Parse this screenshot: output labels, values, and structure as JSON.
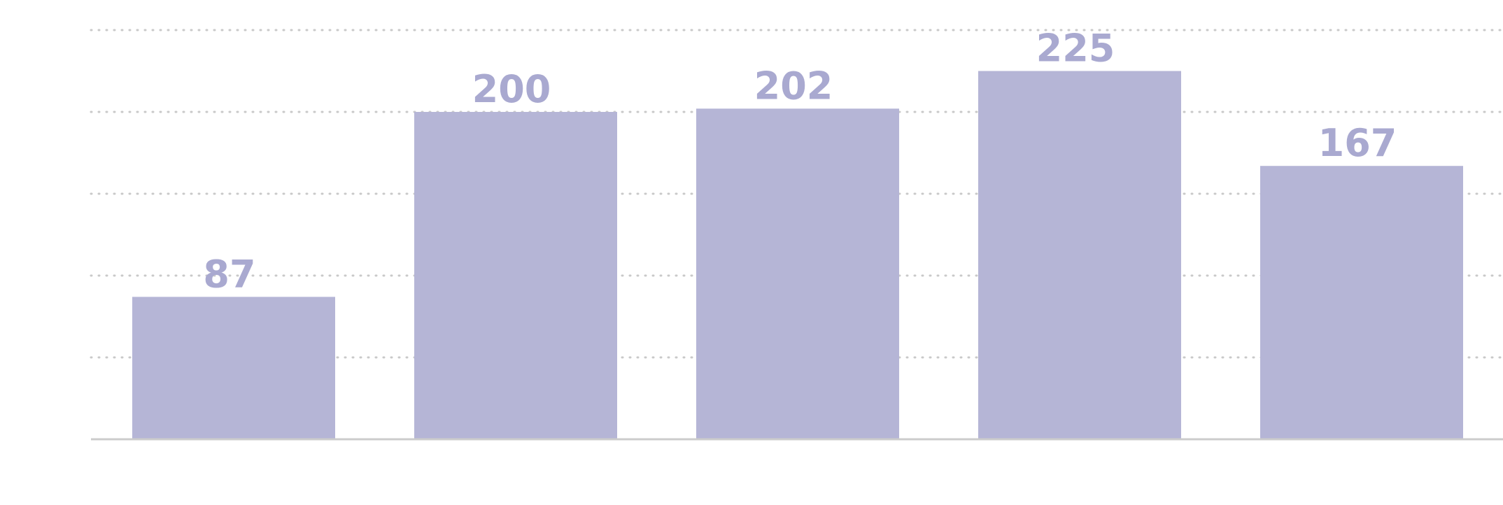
{
  "chart_data": {
    "type": "bar",
    "categories": [
      "",
      "",
      "",
      "",
      ""
    ],
    "values": [
      87,
      200,
      202,
      225,
      167
    ],
    "value_labels": [
      "87",
      "200",
      "202",
      "225",
      "167"
    ],
    "title": "",
    "xlabel": "",
    "ylabel": "",
    "ylim": [
      0,
      250
    ],
    "y_gridlines": [
      50,
      100,
      150,
      200,
      250
    ],
    "grid": true,
    "legend": "none",
    "colors": {
      "bar": "#b5b5d6",
      "label": "#a9a9d0",
      "grid": "#c9c9c9",
      "axis": "#cccccc"
    }
  }
}
